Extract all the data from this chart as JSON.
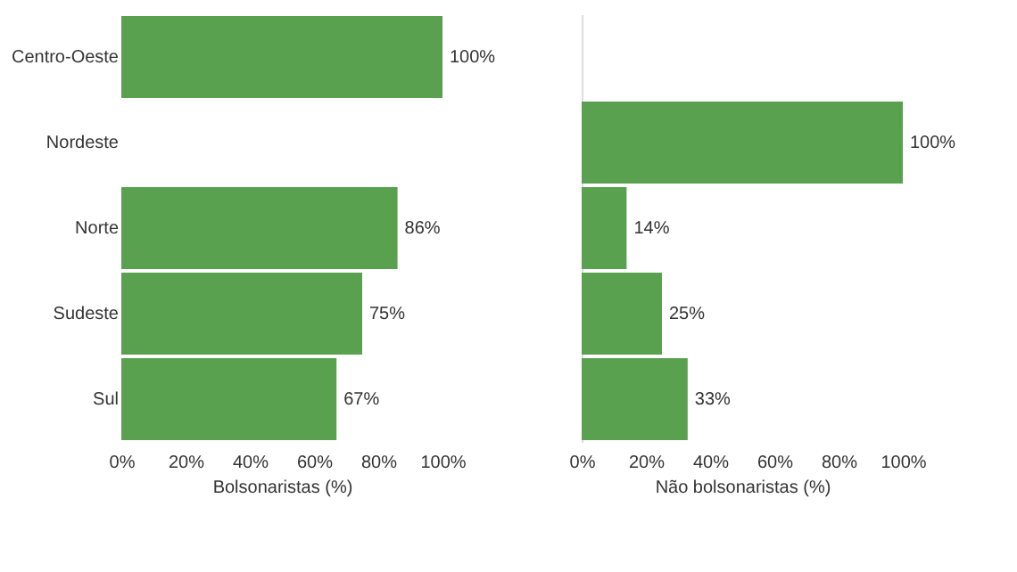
{
  "chart_data": [
    {
      "type": "bar",
      "orientation": "horizontal",
      "categories": [
        "Centro-Oeste",
        "Nordeste",
        "Norte",
        "Sudeste",
        "Sul"
      ],
      "values": [
        100,
        null,
        86,
        75,
        67
      ],
      "value_labels": [
        "100%",
        null,
        "86%",
        "75%",
        "67%"
      ],
      "color": "#59a14f",
      "xlim": [
        0,
        100
      ],
      "xticks": [
        {
          "value": 0,
          "label": "0%"
        },
        {
          "value": 20,
          "label": "20%"
        },
        {
          "value": 40,
          "label": "40%"
        },
        {
          "value": 60,
          "label": "60%"
        },
        {
          "value": 80,
          "label": "80%"
        },
        {
          "value": 100,
          "label": "100%"
        }
      ],
      "xlabel": "Bolsonaristas (%)"
    },
    {
      "type": "bar",
      "orientation": "horizontal",
      "categories": [
        null,
        null,
        null,
        null,
        null
      ],
      "values": [
        null,
        100,
        14,
        25,
        33
      ],
      "value_labels": [
        null,
        "100%",
        "14%",
        "25%",
        "33%"
      ],
      "color": "#59a14f",
      "xlim": [
        0,
        100
      ],
      "xticks": [
        {
          "value": 0,
          "label": "0%"
        },
        {
          "value": 20,
          "label": "20%"
        },
        {
          "value": 40,
          "label": "40%"
        },
        {
          "value": 60,
          "label": "60%"
        },
        {
          "value": 80,
          "label": "80%"
        },
        {
          "value": 100,
          "label": "100%"
        }
      ],
      "xlabel": "Não bolsonaristas (%)",
      "tick_labels": "x"
    }
  ]
}
